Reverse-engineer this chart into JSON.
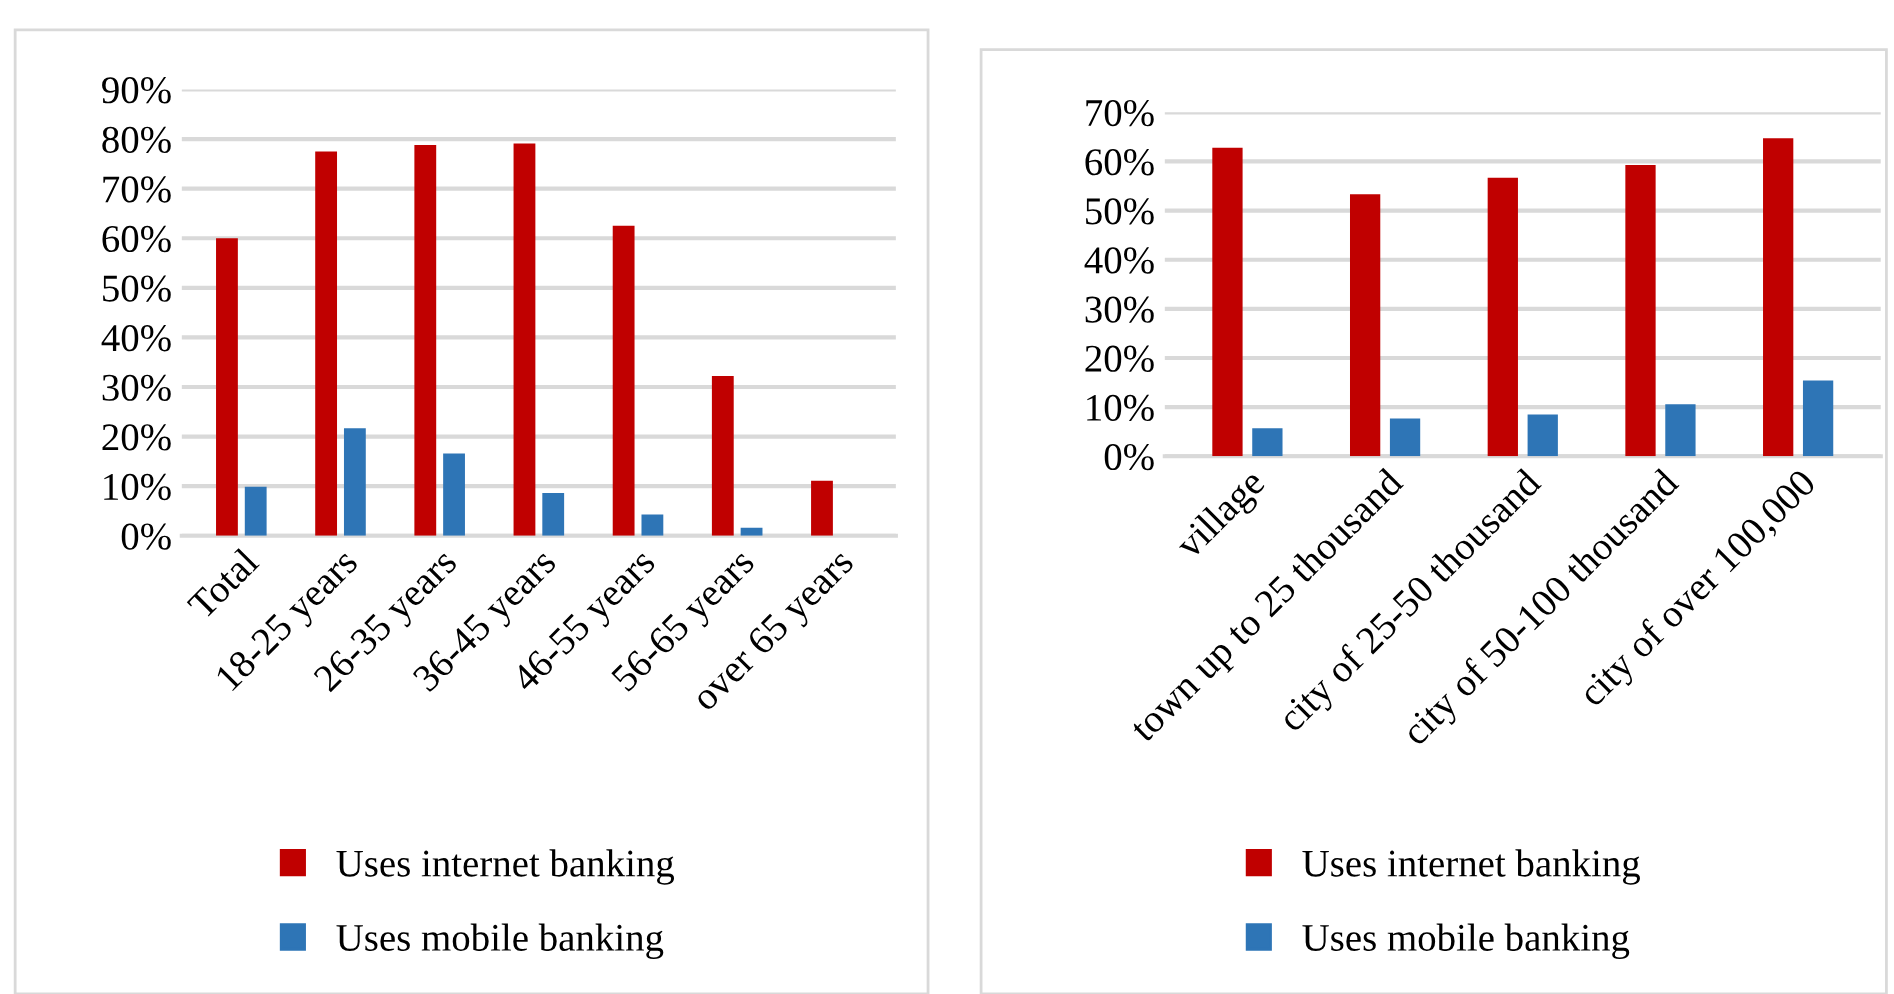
{
  "chart_data": [
    {
      "type": "bar",
      "categories": [
        "Total",
        "18-25 years",
        "26-35 years",
        "36-45 years",
        "46-55 years",
        "56-65 years",
        "over 65 years"
      ],
      "series": [
        {
          "name": "Uses internet banking",
          "color": "#c00000",
          "values": [
            60,
            77.5,
            78.8,
            79.1,
            62.5,
            32.2,
            11.1
          ]
        },
        {
          "name": "Uses mobile banking",
          "color": "#2e75b6",
          "values": [
            9.9,
            21.7,
            16.6,
            8.6,
            4.3,
            1.6,
            null
          ]
        }
      ],
      "ylim": [
        0,
        90
      ],
      "yticks": [
        {
          "value": 0,
          "label": "0%"
        },
        {
          "value": 10,
          "label": "10%"
        },
        {
          "value": 20,
          "label": "20%"
        },
        {
          "value": 30,
          "label": "30%"
        },
        {
          "value": 40,
          "label": "40%"
        },
        {
          "value": 50,
          "label": "50%"
        },
        {
          "value": 60,
          "label": "60%"
        },
        {
          "value": 70,
          "label": "70%"
        },
        {
          "value": 80,
          "label": "80%"
        },
        {
          "value": 90,
          "label": "90%"
        }
      ],
      "grid": "y",
      "legend": "bottom"
    },
    {
      "type": "bar",
      "categories": [
        "village",
        "town up to 25 thousand",
        "city of 25-50 thousand",
        "city of 50-100 thousand",
        "city of over 100,000"
      ],
      "series": [
        {
          "name": "Uses internet banking",
          "color": "#c00000",
          "values": [
            62.8,
            53.3,
            56.7,
            59.3,
            64.7
          ]
        },
        {
          "name": "Uses mobile banking",
          "color": "#2e75b6",
          "values": [
            5.7,
            7.7,
            8.5,
            10.6,
            15.4
          ]
        }
      ],
      "ylim": [
        0,
        70
      ],
      "yticks": [
        {
          "value": 0,
          "label": "0%"
        },
        {
          "value": 10,
          "label": "10%"
        },
        {
          "value": 20,
          "label": "20%"
        },
        {
          "value": 30,
          "label": "30%"
        },
        {
          "value": 40,
          "label": "40%"
        },
        {
          "value": 50,
          "label": "50%"
        },
        {
          "value": 60,
          "label": "60%"
        },
        {
          "value": 70,
          "label": "70%"
        }
      ],
      "grid": "y",
      "legend": "bottom"
    }
  ]
}
